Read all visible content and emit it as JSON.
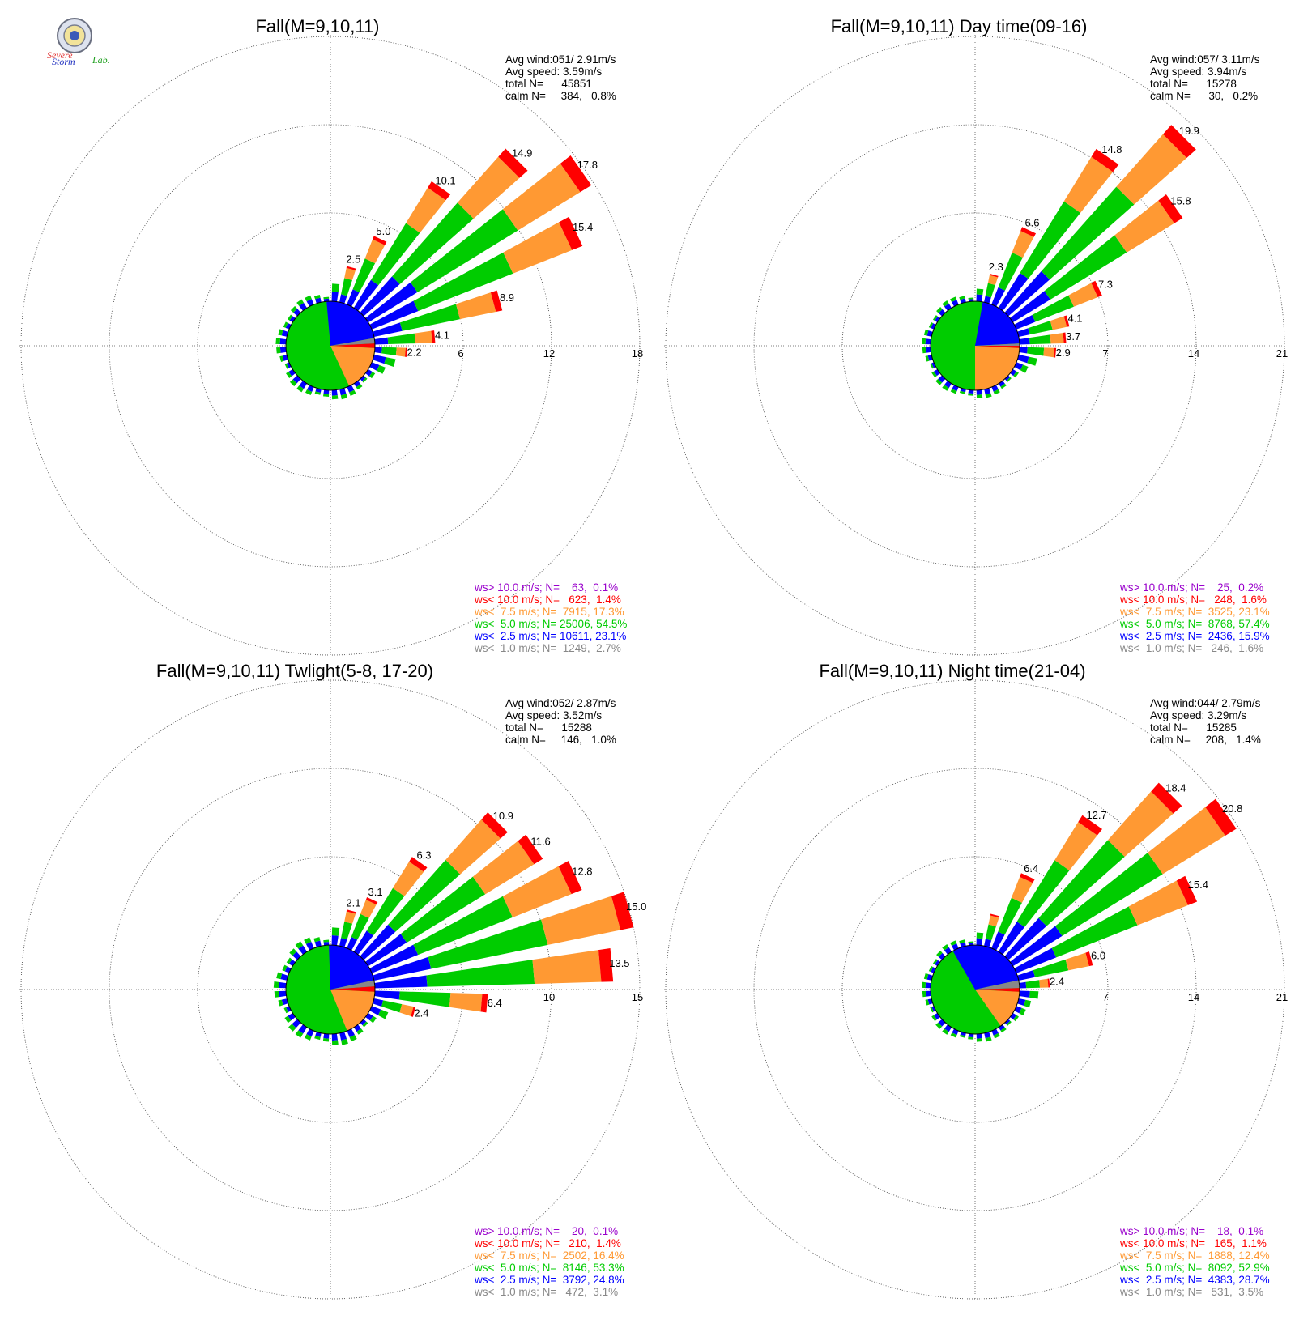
{
  "logo": {
    "text_severe": "Severe",
    "text_storm": "Storm",
    "text_lab": "Lab."
  },
  "colors": {
    "ws10p": "#9900cc",
    "ws10": "#ff0000",
    "ws75": "#ff9933",
    "ws50": "#00cc00",
    "ws25": "#0000ff",
    "ws10m": "#888888",
    "grid": "#555555"
  },
  "chart_data": [
    {
      "type": "windrose",
      "title": "Fall(M=9,10,11)",
      "rings": [
        6,
        12,
        18
      ],
      "avg_wind": "Avg wind:051/ 2.91m/s",
      "avg_speed": "Avg speed: 3.59m/s",
      "total": "total N=      45851",
      "calm": "calm N=     384,   0.8%",
      "center_slices": {
        "blue_deg": [
          355,
          80
        ],
        "gray_deg": [
          80,
          87
        ],
        "red_deg": [
          87,
          93
        ],
        "orange_deg": [
          93,
          155
        ]
      },
      "directions_deg": [
        5,
        15,
        25,
        35,
        45,
        55,
        65,
        75,
        85,
        95,
        105,
        115
      ],
      "totals": [
        1.2,
        2.5,
        5.0,
        10.1,
        14.9,
        17.8,
        15.4,
        8.9,
        4.1,
        2.2,
        1.5,
        1.0
      ],
      "labeled": [
        1,
        2,
        3,
        4,
        5,
        6,
        7,
        8,
        9
      ],
      "legend": [
        "ws> 10.0 m/s; N=    63,  0.1%",
        "ws< 10.0 m/s; N=   623,  1.4%",
        "ws<  7.5 m/s; N=  7915, 17.3%",
        "ws<  5.0 m/s; N= 25006, 54.5%",
        "ws<  2.5 m/s; N= 10611, 23.1%",
        "ws<  1.0 m/s; N=  1249,  2.7%"
      ]
    },
    {
      "type": "windrose",
      "title": "Fall(M=9,10,11) Day time(09-16)",
      "rings": [
        7,
        14,
        21
      ],
      "avg_wind": "Avg wind:057/ 3.11m/s",
      "avg_speed": "Avg speed: 3.94m/s",
      "total": "total N=      15278",
      "calm": "calm N=      30,   0.2%",
      "center_slices": {
        "blue_deg": [
          10,
          87
        ],
        "gray_deg": [
          87,
          90
        ],
        "red_deg": [
          90,
          93
        ],
        "orange_deg": [
          93,
          180
        ]
      },
      "directions_deg": [
        5,
        15,
        25,
        35,
        45,
        55,
        65,
        75,
        85,
        95,
        105,
        115
      ],
      "totals": [
        1.0,
        2.3,
        6.6,
        14.8,
        19.9,
        15.8,
        7.3,
        4.1,
        3.7,
        2.9,
        1.5,
        1.0
      ],
      "labeled": [
        1,
        2,
        3,
        4,
        5,
        6,
        7,
        8,
        9
      ],
      "legend": [
        "ws> 10.0 m/s; N=    25,  0.2%",
        "ws< 10.0 m/s; N=   248,  1.6%",
        "ws<  7.5 m/s; N=  3525, 23.1%",
        "ws<  5.0 m/s; N=  8768, 57.4%",
        "ws<  2.5 m/s; N=  2436, 15.9%",
        "ws<  1.0 m/s; N=   246,  1.6%"
      ]
    },
    {
      "type": "windrose",
      "title": "Fall(M=9,10,11) Twlight(5-8, 17-20)",
      "rings": [
        5,
        10,
        15
      ],
      "avg_wind": "Avg wind:052/ 2.87m/s",
      "avg_speed": "Avg speed: 3.52m/s",
      "total": "total N=      15288",
      "calm": "calm N=     146,   1.0%",
      "center_slices": {
        "blue_deg": [
          358,
          78
        ],
        "gray_deg": [
          78,
          86
        ],
        "red_deg": [
          86,
          93
        ],
        "orange_deg": [
          93,
          158
        ]
      },
      "directions_deg": [
        5,
        15,
        25,
        35,
        45,
        55,
        65,
        75,
        85,
        95,
        105,
        115
      ],
      "totals": [
        1.0,
        2.1,
        3.1,
        6.3,
        10.9,
        11.6,
        12.8,
        15.0,
        13.5,
        6.4,
        2.4,
        1.0
      ],
      "labeled": [
        1,
        2,
        3,
        4,
        5,
        6,
        7,
        8,
        9,
        10
      ],
      "legend": [
        "ws> 10.0 m/s; N=    20,  0.1%",
        "ws< 10.0 m/s; N=   210,  1.4%",
        "ws<  7.5 m/s; N=  2502, 16.4%",
        "ws<  5.0 m/s; N=  8146, 53.3%",
        "ws<  2.5 m/s; N=  3792, 24.8%",
        "ws<  1.0 m/s; N=   472,  3.1%"
      ]
    },
    {
      "type": "windrose",
      "title": "Fall(M=9,10,11) Night time(21-04)",
      "rings": [
        7,
        14,
        21
      ],
      "avg_wind": "Avg wind:044/ 2.79m/s",
      "avg_speed": "Avg speed: 3.29m/s",
      "total": "total N=      15285",
      "calm": "calm N=     208,   1.4%",
      "center_slices": {
        "blue_deg": [
          330,
          78
        ],
        "gray_deg": [
          78,
          88
        ],
        "red_deg": [
          88,
          93
        ],
        "orange_deg": [
          93,
          145
        ]
      },
      "directions_deg": [
        5,
        15,
        25,
        35,
        45,
        55,
        65,
        75,
        85,
        95,
        105,
        115
      ],
      "totals": [
        1.0,
        2.6,
        6.4,
        12.7,
        18.4,
        20.8,
        15.4,
        6.0,
        2.4,
        1.5,
        1.0,
        0.8
      ],
      "labeled": [
        2,
        3,
        4,
        5,
        6,
        7,
        8
      ],
      "legend": [
        "ws> 10.0 m/s; N=    18,  0.1%",
        "ws< 10.0 m/s; N=   165,  1.1%",
        "ws<  7.5 m/s; N=  1888, 12.4%",
        "ws<  5.0 m/s; N=  8092, 52.9%",
        "ws<  2.5 m/s; N=  4383, 28.7%",
        "ws<  1.0 m/s; N=   531,  3.5%"
      ]
    }
  ]
}
